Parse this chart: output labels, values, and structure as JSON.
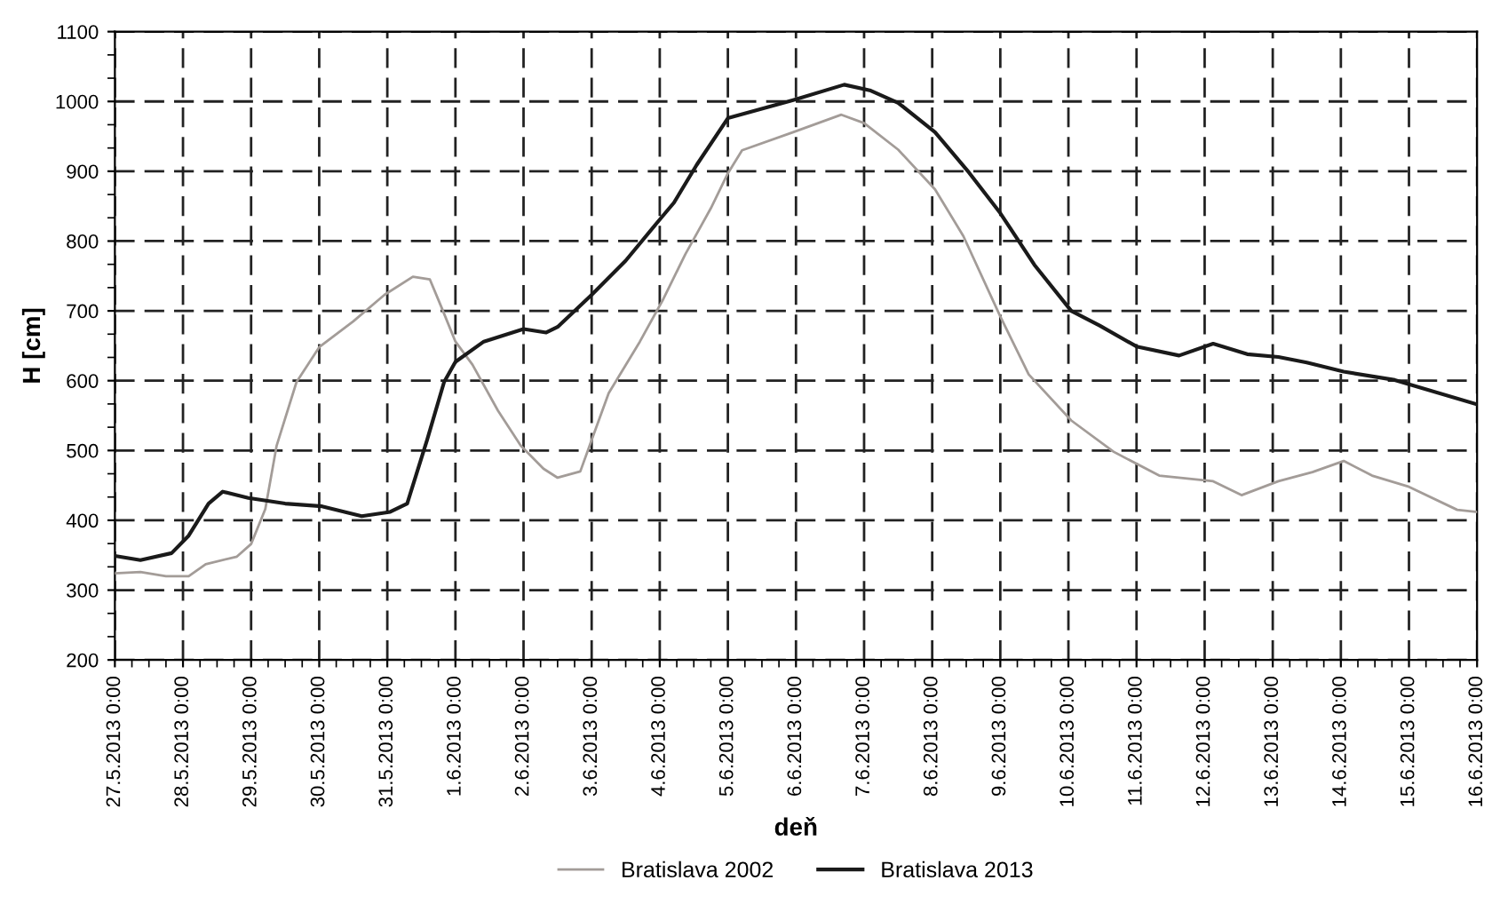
{
  "chart_data": {
    "type": "line",
    "xlabel": "deň",
    "ylabel": "H [cm]",
    "x": [
      "2013-05-27T00:00",
      "2013-05-27T09:00",
      "2013-05-27T20:00",
      "2013-05-28T02:00",
      "2013-05-28T09:00",
      "2013-05-28T14:00",
      "2013-05-28T23:00",
      "2013-05-29T12:00",
      "2013-05-30T01:00",
      "2013-05-30T15:00",
      "2013-05-31T01:00",
      "2013-05-31T07:00",
      "2013-05-31T14:00",
      "2013-05-31T20:00",
      "2013-06-01T00:00",
      "2013-06-01T10:00",
      "2013-06-02T00:00",
      "2013-06-02T08:00",
      "2013-06-02T12:00",
      "2013-06-03T00:00",
      "2013-06-03T12:00",
      "2013-06-03T23:00",
      "2013-06-04T05:00",
      "2013-06-04T13:00",
      "2013-06-05T00:00",
      "2013-06-05T23:00",
      "2013-06-06T17:00",
      "2013-06-07T02:00",
      "2013-06-07T12:00",
      "2013-06-08T01:00",
      "2013-06-08T13:00",
      "2013-06-09T00:00",
      "2013-06-09T12:00",
      "2013-06-10T01:00",
      "2013-06-10T11:00",
      "2013-06-11T00:00",
      "2013-06-11T15:00",
      "2013-06-12T03:00",
      "2013-06-12T15:00",
      "2013-06-13T02:00",
      "2013-06-13T12:00",
      "2013-06-14T01:00",
      "2013-06-14T19:00",
      "2013-06-16T00:00"
    ],
    "series": [
      {
        "name": "Bratislava 2002",
        "color": "#a39c98",
        "x": [
          "2013-05-27T00:00",
          "2013-05-27T09:00",
          "2013-05-27T18:00",
          "2013-05-28T02:00",
          "2013-05-28T08:00",
          "2013-05-28T19:00",
          "2013-05-29T00:00",
          "2013-05-29T05:00",
          "2013-05-29T09:00",
          "2013-05-29T16:00",
          "2013-05-30T00:00",
          "2013-05-30T12:00",
          "2013-05-30T23:00",
          "2013-05-31T09:00",
          "2013-05-31T15:00",
          "2013-05-31T19:00",
          "2013-06-01T00:00",
          "2013-06-01T06:00",
          "2013-06-01T15:00",
          "2013-06-01T23:00",
          "2013-06-02T07:00",
          "2013-06-02T12:00",
          "2013-06-02T20:00",
          "2013-06-03T00:00",
          "2013-06-03T06:00",
          "2013-06-03T17:00",
          "2013-06-04T01:00",
          "2013-06-04T09:00",
          "2013-06-04T18:00",
          "2013-06-05T00:00",
          "2013-06-05T05:00",
          "2013-06-05T23:00",
          "2013-06-06T16:00",
          "2013-06-07T00:00",
          "2013-06-07T12:00",
          "2013-06-08T01:00",
          "2013-06-08T11:00",
          "2013-06-09T00:00",
          "2013-06-09T10:00",
          "2013-06-10T01:00",
          "2013-06-10T16:00",
          "2013-06-11T08:00",
          "2013-06-12T03:00",
          "2013-06-12T13:00",
          "2013-06-13T02:00",
          "2013-06-13T14:00",
          "2013-06-14T01:00",
          "2013-06-14T11:00",
          "2013-06-15T00:00",
          "2013-06-15T17:00",
          "2013-06-16T00:00"
        ],
        "values": [
          324,
          326,
          320,
          320,
          337,
          348,
          366,
          416,
          507,
          598,
          648,
          685,
          723,
          749,
          745,
          706,
          656,
          623,
          557,
          507,
          474,
          461,
          470,
          515,
          582,
          656,
          715,
          781,
          847,
          897,
          930,
          956,
          981,
          969,
          931,
          874,
          807,
          692,
          609,
          543,
          498,
          464,
          456,
          436,
          456,
          469,
          485,
          464,
          448,
          415,
          412
        ]
      },
      {
        "name": "Bratislava 2013",
        "color": "#1a1a1a",
        "values": [
          349,
          343,
          353,
          378,
          424,
          441,
          432,
          424,
          420,
          406,
          412,
          424,
          515,
          598,
          627,
          656,
          674,
          669,
          677,
          723,
          772,
          826,
          855,
          909,
          976,
          1002,
          1024,
          1016,
          998,
          956,
          898,
          840,
          766,
          700,
          679,
          649,
          636,
          653,
          638,
          634,
          626,
          613,
          601,
          566
        ]
      }
    ],
    "xlim": [
      "2013-05-27",
      "2013-06-16"
    ],
    "xticks": [
      {
        "value": "2013-05-27",
        "label": "27.5.2013 0:00"
      },
      {
        "value": "2013-05-28",
        "label": "28.5.2013 0:00"
      },
      {
        "value": "2013-05-29",
        "label": "29.5.2013 0:00"
      },
      {
        "value": "2013-05-30",
        "label": "30.5.2013 0:00"
      },
      {
        "value": "2013-05-31",
        "label": "31.5.2013 0:00"
      },
      {
        "value": "2013-06-01",
        "label": "1.6.2013 0:00"
      },
      {
        "value": "2013-06-02",
        "label": "2.6.2013 0:00"
      },
      {
        "value": "2013-06-03",
        "label": "3.6.2013 0:00"
      },
      {
        "value": "2013-06-04",
        "label": "4.6.2013 0:00"
      },
      {
        "value": "2013-06-05",
        "label": "5.6.2013 0:00"
      },
      {
        "value": "2013-06-06",
        "label": "6.6.2013 0:00"
      },
      {
        "value": "2013-06-07",
        "label": "7.6.2013 0:00"
      },
      {
        "value": "2013-06-08",
        "label": "8.6.2013 0:00"
      },
      {
        "value": "2013-06-09",
        "label": "9.6.2013 0:00"
      },
      {
        "value": "2013-06-10",
        "label": "10.6.2013 0:00"
      },
      {
        "value": "2013-06-11",
        "label": "11.6.2013 0:00"
      },
      {
        "value": "2013-06-12",
        "label": "12.6.2013 0:00"
      },
      {
        "value": "2013-06-13",
        "label": "13.6.2013 0:00"
      },
      {
        "value": "2013-06-14",
        "label": "14.6.2013 0:00"
      },
      {
        "value": "2013-06-15",
        "label": "15.6.2013 0:00"
      },
      {
        "value": "2013-06-16",
        "label": "16.6.2013 0:00"
      }
    ],
    "ylim": [
      200,
      1100
    ],
    "yticks": [
      200,
      300,
      400,
      500,
      600,
      700,
      800,
      900,
      1000,
      1100
    ],
    "grid": true,
    "legend": "bottom",
    "line_style": "solid",
    "marker": "none"
  }
}
